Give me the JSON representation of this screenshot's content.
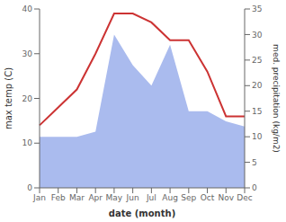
{
  "chart_data": {
    "type": "line",
    "xlabel": "date (month)",
    "ylabel": "max temp (C)",
    "y2label": "med. precipitation (kg/m2)",
    "categories": [
      "Jan",
      "Feb",
      "Mar",
      "Apr",
      "May",
      "Jun",
      "Jul",
      "Aug",
      "Sep",
      "Oct",
      "Nov",
      "Dec"
    ],
    "series": [
      {
        "type": "area",
        "axis": "y2",
        "color": "#aabbee",
        "values": [
          10,
          10,
          10,
          11,
          30,
          24,
          20,
          28,
          15,
          15,
          13,
          12
        ]
      },
      {
        "type": "line",
        "color": "#cc3333",
        "values": [
          14,
          18,
          22,
          30,
          39,
          39,
          37,
          33,
          33,
          26,
          16,
          16
        ]
      }
    ],
    "ylim": [
      0,
      40
    ],
    "yticks": [
      0,
      10,
      20,
      30,
      40
    ],
    "y2lim": [
      0,
      35
    ],
    "y2ticks": [
      0,
      5,
      10,
      15,
      20,
      25,
      30,
      35
    ],
    "grid": false
  }
}
